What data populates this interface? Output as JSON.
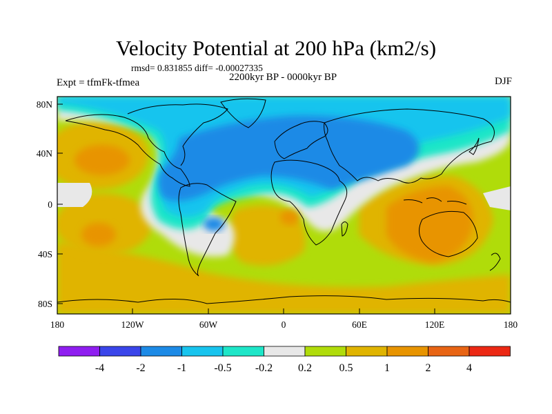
{
  "title": "Velocity Potential at 200 hPa (km2/s)",
  "stats": "rmsd= 0.831855 diff= -0.00027335",
  "experiment": "Expt = tfmFk-tfmea",
  "period": "2200kyr BP - 0000kyr BP",
  "season": "DJF",
  "latitude_labels": [
    "80N",
    "40N",
    "0",
    "40S",
    "80S"
  ],
  "longitude_labels": [
    "180",
    "120W",
    "60W",
    "0",
    "60E",
    "120E",
    "180"
  ],
  "colorbar": {
    "labels": [
      "-4",
      "-2",
      "-1",
      "-0.5",
      "-0.2",
      "0.2",
      "0.5",
      "1",
      "2",
      "4"
    ],
    "colors": [
      "#8f1ef0",
      "#3a45ea",
      "#1c8ae6",
      "#18c4ee",
      "#1ee6c8",
      "#e8e8e8",
      "#b0dc0a",
      "#e0b400",
      "#e89400",
      "#e86414",
      "#ec2814"
    ]
  }
}
